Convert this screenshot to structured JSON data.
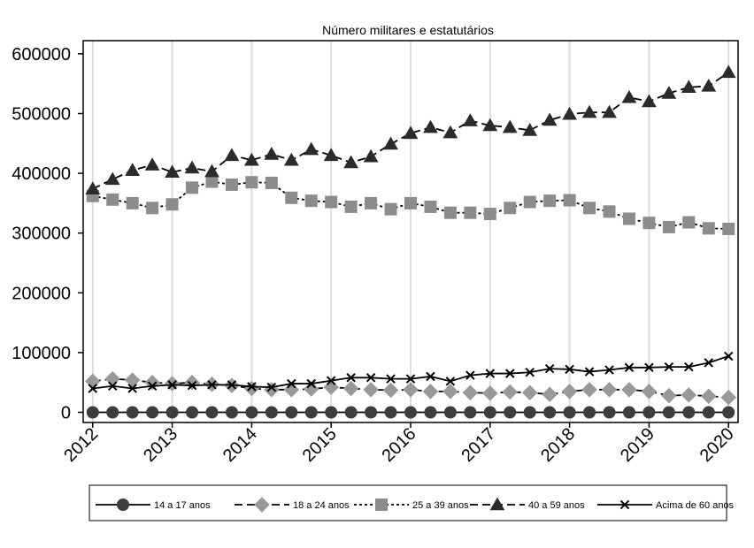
{
  "chart_data": {
    "type": "line",
    "title": "Número militares e estatutários",
    "xlabel": "",
    "ylabel": "",
    "x": [
      2012.0,
      2012.25,
      2012.5,
      2012.75,
      2013.0,
      2013.25,
      2013.5,
      2013.75,
      2014.0,
      2014.25,
      2014.5,
      2014.75,
      2015.0,
      2015.25,
      2015.5,
      2015.75,
      2016.0,
      2016.25,
      2016.5,
      2016.75,
      2017.0,
      2017.25,
      2017.5,
      2017.75,
      2018.0,
      2018.25,
      2018.5,
      2018.75,
      2019.0,
      2019.25,
      2019.5,
      2019.75,
      2020.0
    ],
    "xticks": [
      2012,
      2013,
      2014,
      2015,
      2016,
      2017,
      2018,
      2019,
      2020
    ],
    "xtick_labels": [
      "2012",
      "2013",
      "2014",
      "2015",
      "2016",
      "2017",
      "2018",
      "2019",
      "2020"
    ],
    "yticks": [
      0,
      100000,
      200000,
      300000,
      400000,
      500000,
      600000
    ],
    "ytick_labels": [
      "0",
      "100000",
      "200000",
      "300000",
      "400000",
      "500000",
      "600000"
    ],
    "xlim": [
      2011.88,
      2020.12
    ],
    "ylim": [
      -17000,
      622000
    ],
    "grid": "vertical",
    "legend_position": "bottom",
    "series": [
      {
        "name": "14 a 17 anos",
        "marker": "circle",
        "dash": "solid",
        "color": "#3d3d3d",
        "values": [
          0,
          0,
          0,
          0,
          0,
          0,
          0,
          0,
          0,
          0,
          0,
          0,
          0,
          0,
          0,
          0,
          0,
          0,
          0,
          0,
          0,
          0,
          0,
          0,
          0,
          0,
          0,
          0,
          0,
          0,
          0,
          0,
          0
        ]
      },
      {
        "name": "18 a 24 anos",
        "marker": "diamond",
        "dash": "longdash",
        "color": "#999999",
        "values": [
          52000,
          56000,
          54000,
          50000,
          48000,
          50000,
          47000,
          45000,
          40000,
          38000,
          38000,
          39000,
          42000,
          40000,
          38000,
          37000,
          38000,
          35000,
          35000,
          33000,
          32000,
          34000,
          33000,
          30000,
          35000,
          38000,
          38000,
          38000,
          35000,
          28000,
          29000,
          27000,
          25000
        ]
      },
      {
        "name": "25 a 39 anos",
        "marker": "square",
        "dash": "shortdash",
        "color": "#8c8c8c",
        "values": [
          362000,
          356000,
          350000,
          342000,
          348000,
          376000,
          386000,
          381000,
          385000,
          384000,
          359000,
          354000,
          352000,
          344000,
          350000,
          340000,
          350000,
          344000,
          334000,
          334000,
          332000,
          342000,
          352000,
          354000,
          355000,
          342000,
          336000,
          324000,
          317000,
          310000,
          318000,
          308000,
          307000
        ]
      },
      {
        "name": "40 a 59 anos",
        "marker": "triangle",
        "dash": "longdash",
        "color": "#2b2b2b",
        "values": [
          374000,
          390000,
          405000,
          414000,
          402000,
          409000,
          403000,
          430000,
          422000,
          432000,
          422000,
          440000,
          430000,
          418000,
          428000,
          449000,
          467000,
          477000,
          468000,
          488000,
          480000,
          477000,
          472000,
          489000,
          499000,
          502000,
          502000,
          527000,
          520000,
          534000,
          544000,
          546000,
          569000
        ]
      },
      {
        "name": "Acima de 60 anos",
        "marker": "x",
        "dash": "solid",
        "color": "#000000",
        "values": [
          40000,
          44000,
          40000,
          44000,
          46000,
          45000,
          46000,
          46000,
          43000,
          42000,
          48000,
          48000,
          53000,
          58000,
          58000,
          56000,
          56000,
          60000,
          52000,
          62000,
          65000,
          65000,
          67000,
          73000,
          72000,
          68000,
          71000,
          75000,
          75000,
          76000,
          76000,
          83000,
          94000
        ]
      }
    ]
  }
}
